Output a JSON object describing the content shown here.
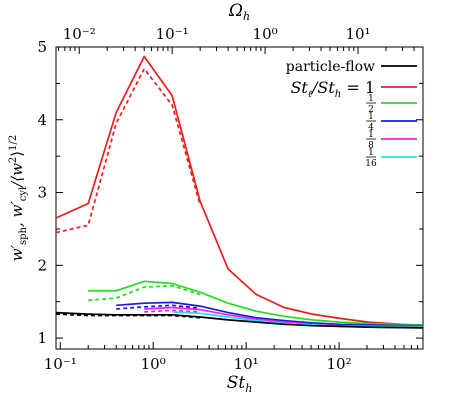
{
  "chart_data": {
    "type": "line",
    "xlabel": "St_h",
    "ylabel": "w'_sph, w'_cyl / ⟨w^2⟩^1/2",
    "top_xlabel": "Ω_h",
    "xscale": "log",
    "xlim": [
      0.09,
      800
    ],
    "ylim": [
      0.85,
      5.0
    ],
    "bottom_xticks": [
      {
        "value": 0.1,
        "label": "10⁻¹"
      },
      {
        "value": 1,
        "label": "10⁰"
      },
      {
        "value": 10,
        "label": "10¹"
      },
      {
        "value": 100,
        "label": "10²"
      }
    ],
    "top_xticks": [
      {
        "value": 0.01,
        "label": "10⁻²"
      },
      {
        "value": 0.1,
        "label": "10⁻¹"
      },
      {
        "value": 1,
        "label": "10⁰"
      },
      {
        "value": 10,
        "label": "10¹"
      }
    ],
    "top_axis_scale": 0.0625,
    "yticks": [
      1,
      2,
      3,
      4,
      5
    ],
    "legend_position": "top-right",
    "series": [
      {
        "name": "St_ℓ/St_h = 1",
        "legend": "St_ℓ/St_h = 1",
        "color": "#ee1c1c",
        "style": "solid",
        "x": [
          0.09,
          0.2,
          0.4,
          0.8,
          1.6,
          3.2,
          6.4,
          12.8,
          25.6,
          51.2,
          102.4,
          204.8,
          800
        ],
        "y": [
          2.65,
          2.85,
          4.1,
          4.87,
          4.33,
          2.88,
          1.95,
          1.6,
          1.42,
          1.33,
          1.27,
          1.22,
          1.17
        ]
      },
      {
        "name": "St_ℓ/St_h = 1 (cylinder)",
        "color": "#ee1c1c",
        "style": "dashed",
        "x": [
          0.09,
          0.2,
          0.4,
          0.8,
          1.6,
          3.2
        ],
        "y": [
          2.45,
          2.55,
          3.95,
          4.7,
          4.2,
          2.83
        ]
      },
      {
        "name": "1/2",
        "legend": "1/2",
        "color": "#22dd22",
        "style": "solid",
        "x": [
          0.2,
          0.4,
          0.8,
          1.6,
          3.2,
          6.4,
          12.8,
          25.6,
          51.2,
          102.4,
          204.8,
          800
        ],
        "y": [
          1.65,
          1.65,
          1.78,
          1.75,
          1.63,
          1.48,
          1.37,
          1.3,
          1.25,
          1.22,
          1.2,
          1.18
        ]
      },
      {
        "name": "1/2 (cylinder)",
        "color": "#22dd22",
        "style": "dashed",
        "x": [
          0.2,
          0.4,
          0.8,
          1.6,
          3.2
        ],
        "y": [
          1.52,
          1.55,
          1.7,
          1.72,
          1.6
        ]
      },
      {
        "name": "1/4",
        "legend": "1/4",
        "color": "#1a1ae0",
        "style": "solid",
        "x": [
          0.4,
          0.8,
          1.6,
          3.2,
          6.4,
          12.8,
          25.6,
          51.2,
          102.4,
          204.8,
          800
        ],
        "y": [
          1.45,
          1.48,
          1.49,
          1.44,
          1.35,
          1.28,
          1.24,
          1.21,
          1.19,
          1.18,
          1.17
        ]
      },
      {
        "name": "1/4 (cylinder)",
        "color": "#1a1ae0",
        "style": "dashed",
        "x": [
          0.4,
          0.8,
          1.6,
          3.2
        ],
        "y": [
          1.4,
          1.43,
          1.45,
          1.41
        ]
      },
      {
        "name": "1/8",
        "legend": "1/8",
        "color": "#ee22ee",
        "style": "solid",
        "x": [
          0.8,
          1.6,
          3.2,
          6.4,
          12.8,
          25.6,
          51.2,
          102.4,
          800
        ],
        "y": [
          1.4,
          1.42,
          1.39,
          1.32,
          1.26,
          1.22,
          1.19,
          1.17,
          1.16
        ]
      },
      {
        "name": "1/8 (cylinder)",
        "color": "#ee22ee",
        "style": "dashed",
        "x": [
          0.8,
          1.6,
          3.2
        ],
        "y": [
          1.36,
          1.38,
          1.36
        ]
      },
      {
        "name": "1/16",
        "legend": "1/16",
        "color": "#22e0ee",
        "style": "solid",
        "x": [
          1.6,
          3.2,
          6.4,
          12.8,
          25.6,
          51.2,
          102.4,
          800
        ],
        "y": [
          1.36,
          1.34,
          1.29,
          1.24,
          1.2,
          1.18,
          1.16,
          1.15
        ]
      },
      {
        "name": "particle-flow",
        "legend": "particle-flow",
        "color": "#000000",
        "style": "solid",
        "x": [
          0.09,
          0.2,
          0.4,
          0.8,
          1.6,
          3.2,
          6.4,
          12.8,
          25.6,
          51.2,
          102.4,
          204.8,
          800
        ],
        "y": [
          1.35,
          1.33,
          1.32,
          1.32,
          1.32,
          1.29,
          1.25,
          1.22,
          1.19,
          1.17,
          1.16,
          1.15,
          1.14
        ]
      },
      {
        "name": "particle-flow (cylinder)",
        "color": "#000000",
        "style": "dashed",
        "x": [
          0.09,
          0.2,
          0.4,
          0.8,
          1.6,
          3.2
        ],
        "y": [
          1.33,
          1.31,
          1.31,
          1.31,
          1.31,
          1.28
        ]
      }
    ],
    "legend": [
      {
        "label": "particle-flow",
        "color": "#000000",
        "type": "text"
      },
      {
        "label": "St_ℓ/St_h = 1",
        "color": "#ee1c1c",
        "type": "stfrac"
      },
      {
        "label": "1/2",
        "num": "1",
        "den": "2",
        "color": "#22dd22",
        "type": "frac"
      },
      {
        "label": "1/4",
        "num": "1",
        "den": "4",
        "color": "#1a1ae0",
        "type": "frac"
      },
      {
        "label": "1/8",
        "num": "1",
        "den": "8",
        "color": "#ee22ee",
        "type": "frac"
      },
      {
        "label": "1/16",
        "num": "1",
        "den": "16",
        "color": "#22e0ee",
        "type": "frac"
      }
    ]
  }
}
